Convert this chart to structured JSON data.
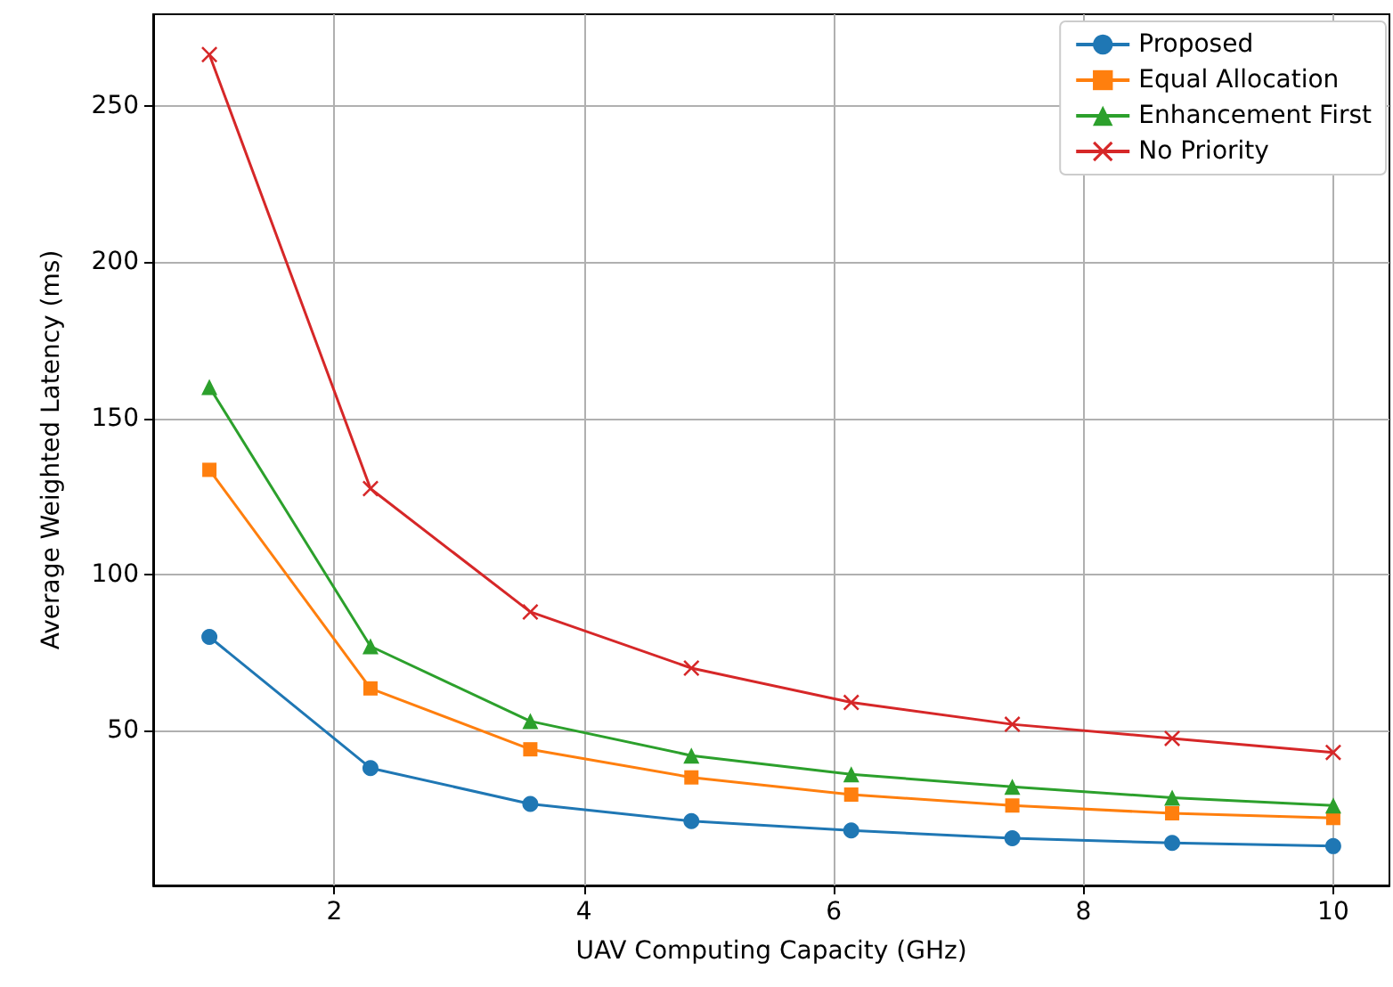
{
  "chart_data": {
    "type": "line",
    "xlabel": "UAV Computing Capacity (GHz)",
    "ylabel": "Average Weighted Latency (ms)",
    "x": [
      1,
      2.29,
      3.57,
      4.86,
      6.14,
      7.43,
      8.71,
      10
    ],
    "series": [
      {
        "name": "Proposed",
        "color": "#1f77b4",
        "marker": "circle",
        "values": [
          80,
          38,
          26.5,
          21,
          18,
          15.5,
          14,
          13
        ]
      },
      {
        "name": "Equal Allocation",
        "color": "#ff7f0e",
        "marker": "square",
        "values": [
          133.5,
          63.5,
          44,
          35,
          29.5,
          26,
          23.5,
          22
        ]
      },
      {
        "name": "Enhancement First",
        "color": "#2ca02c",
        "marker": "triangle",
        "values": [
          160,
          77,
          53,
          42,
          36,
          32,
          28.5,
          26
        ]
      },
      {
        "name": "No Priority",
        "color": "#d62728",
        "marker": "cross",
        "values": [
          266.5,
          127.5,
          88,
          70,
          59,
          52,
          47.5,
          43
        ]
      }
    ],
    "xlim": [
      0.55,
      10.45
    ],
    "xticks": [
      2,
      4,
      6,
      8,
      10
    ],
    "ylim": [
      0.4,
      279.4
    ],
    "yticks": [
      50,
      100,
      150,
      200,
      250
    ],
    "grid": true,
    "legend": "top right",
    "line_style": "solid"
  }
}
